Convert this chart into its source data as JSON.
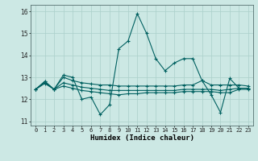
{
  "xlabel": "Humidex (Indice chaleur)",
  "xlim": [
    -0.5,
    23.5
  ],
  "ylim": [
    10.8,
    16.3
  ],
  "yticks": [
    11,
    12,
    13,
    14,
    15,
    16
  ],
  "xticks": [
    0,
    1,
    2,
    3,
    4,
    5,
    6,
    7,
    8,
    9,
    10,
    11,
    12,
    13,
    14,
    15,
    16,
    17,
    18,
    19,
    20,
    21,
    22,
    23
  ],
  "bg_color": "#cce8e4",
  "grid_color": "#aacfca",
  "line_color": "#006060",
  "lines": [
    [
      12.45,
      12.8,
      12.45,
      13.1,
      13.0,
      12.0,
      12.1,
      11.3,
      11.75,
      14.3,
      14.65,
      15.9,
      15.0,
      13.85,
      13.3,
      13.65,
      13.85,
      13.85,
      12.85,
      12.2,
      11.4,
      12.95,
      12.5,
      12.5
    ],
    [
      12.45,
      12.82,
      12.45,
      13.0,
      12.85,
      12.75,
      12.7,
      12.65,
      12.65,
      12.6,
      12.6,
      12.6,
      12.6,
      12.6,
      12.6,
      12.6,
      12.65,
      12.65,
      12.85,
      12.65,
      12.65,
      12.65,
      12.65,
      12.6
    ],
    [
      12.45,
      12.75,
      12.45,
      12.75,
      12.65,
      12.55,
      12.5,
      12.45,
      12.4,
      12.4,
      12.4,
      12.4,
      12.4,
      12.4,
      12.4,
      12.4,
      12.45,
      12.45,
      12.45,
      12.45,
      12.4,
      12.45,
      12.5,
      12.5
    ],
    [
      12.45,
      12.72,
      12.45,
      12.6,
      12.5,
      12.4,
      12.35,
      12.3,
      12.25,
      12.2,
      12.25,
      12.25,
      12.3,
      12.3,
      12.3,
      12.3,
      12.35,
      12.35,
      12.35,
      12.35,
      12.3,
      12.3,
      12.45,
      12.45
    ]
  ]
}
